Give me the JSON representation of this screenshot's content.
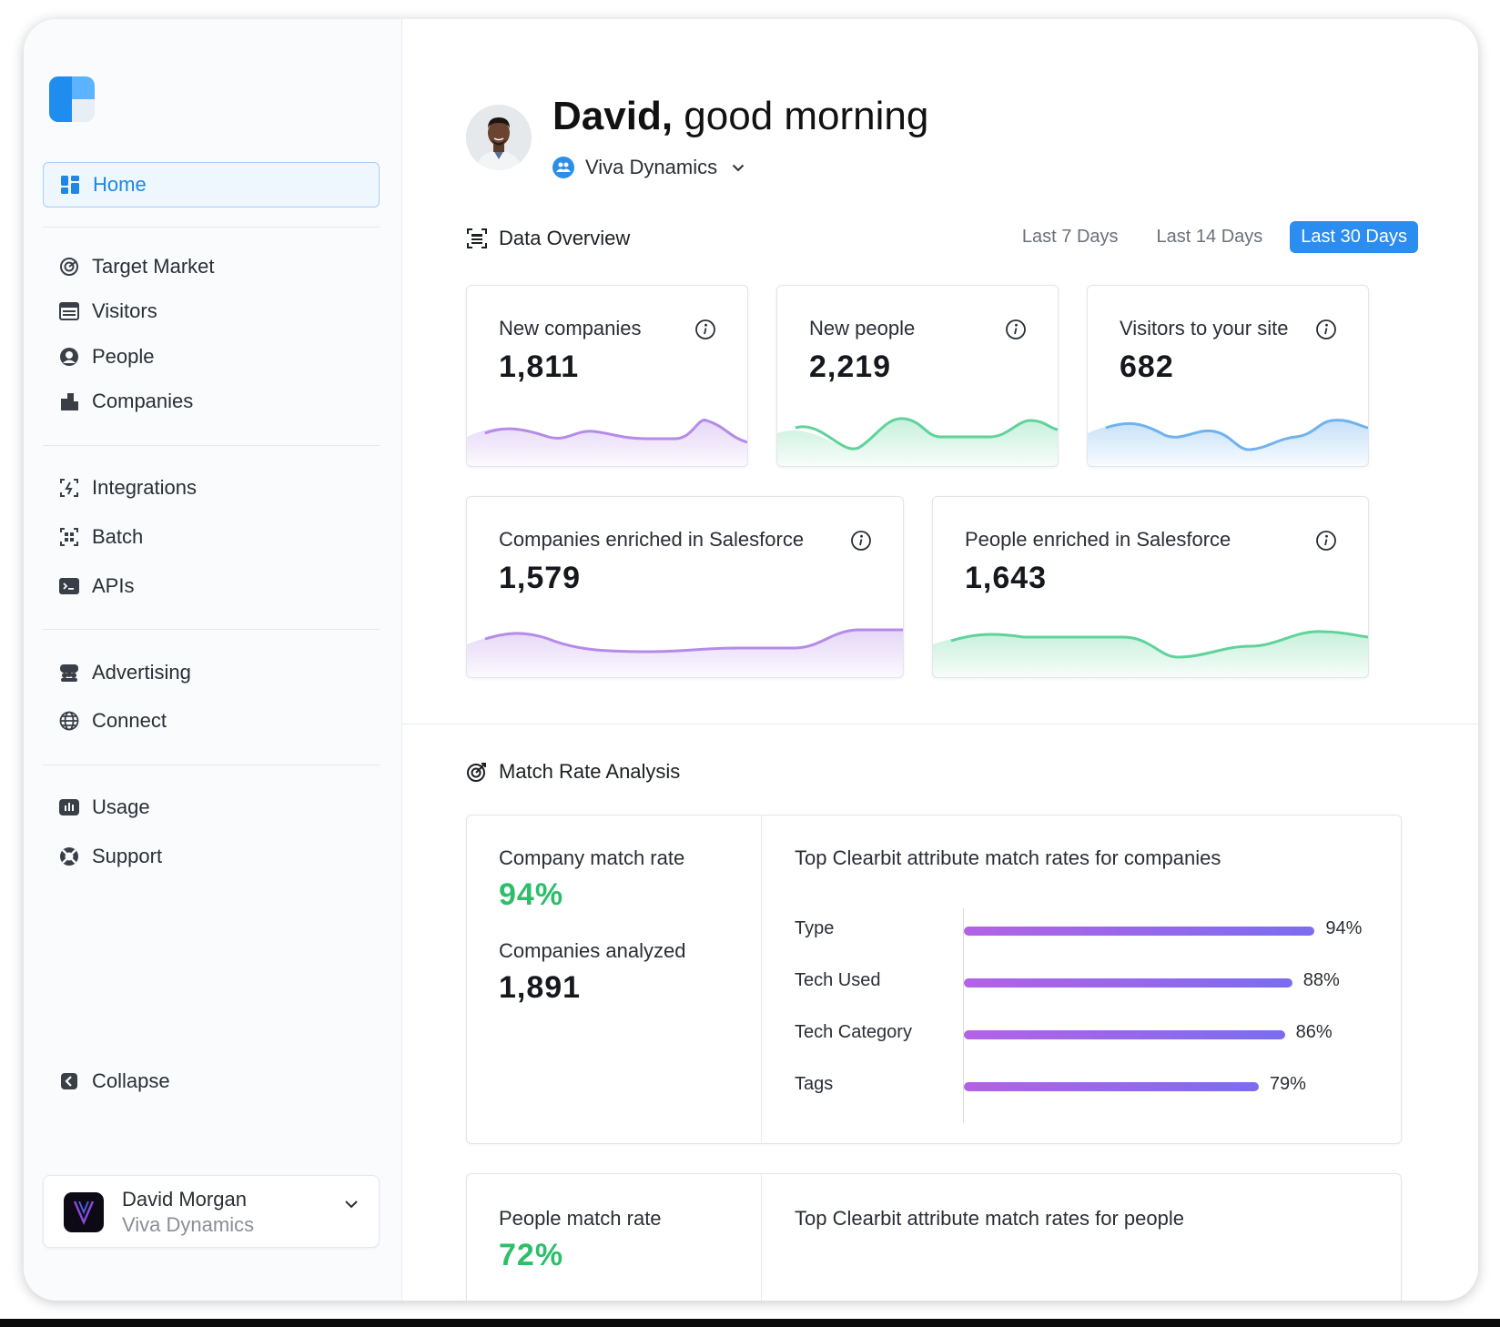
{
  "sidebar": {
    "items": [
      {
        "label": "Home",
        "icon": "dashboard-icon"
      },
      {
        "label": "Target Market",
        "icon": "radar-icon"
      },
      {
        "label": "Visitors",
        "icon": "browser-window-icon"
      },
      {
        "label": "People",
        "icon": "person-circle-icon"
      },
      {
        "label": "Companies",
        "icon": "buildings-icon"
      },
      {
        "label": "Integrations",
        "icon": "plug-bolt-icon"
      },
      {
        "label": "Batch",
        "icon": "grid-dots-icon"
      },
      {
        "label": "APIs",
        "icon": "terminal-icon"
      },
      {
        "label": "Advertising",
        "icon": "audience-icon"
      },
      {
        "label": "Connect",
        "icon": "globe-icon"
      },
      {
        "label": "Usage",
        "icon": "bar-chart-icon"
      },
      {
        "label": "Support",
        "icon": "lifebuoy-icon"
      }
    ],
    "collapse_label": "Collapse",
    "user": {
      "name": "David Morgan",
      "org": "Viva Dynamics"
    }
  },
  "header": {
    "name": "David,",
    "greeting": "good morning",
    "org": "Viva Dynamics"
  },
  "overview": {
    "title": "Data Overview",
    "ranges": [
      "Last 7 Days",
      "Last 14 Days",
      "Last 30 Days"
    ],
    "active_range": "Last 30 Days",
    "cards": [
      {
        "label": "New companies",
        "value": "1,811",
        "color": "#b58be8"
      },
      {
        "label": "New people",
        "value": "2,219",
        "color": "#5fd39a"
      },
      {
        "label": "Visitors to your site",
        "value": "682",
        "color": "#6fb2ee"
      },
      {
        "label": "Companies enriched in Salesforce",
        "value": "1,579",
        "color": "#b58be8"
      },
      {
        "label": "People enriched in Salesforce",
        "value": "1,643",
        "color": "#5fd39a"
      }
    ]
  },
  "match": {
    "title": "Match Rate Analysis",
    "company": {
      "rate_label": "Company match rate",
      "rate_value": "94%",
      "analyzed_label": "Companies analyzed",
      "analyzed_value": "1,891",
      "chart_title": "Top Clearbit attribute match rates for companies"
    },
    "people": {
      "rate_label": "People match rate",
      "rate_value": "72%",
      "chart_title": "Top Clearbit attribute match rates for people"
    },
    "accent": "#2cbf6a"
  },
  "chart_data": {
    "type": "bar",
    "orientation": "horizontal",
    "title": "Top Clearbit attribute match rates for companies",
    "categories": [
      "Type",
      "Tech Used",
      "Tech Category",
      "Tags"
    ],
    "values": [
      94,
      88,
      86,
      79
    ],
    "value_labels": [
      "94%",
      "88%",
      "86%",
      "79%"
    ],
    "xlim": [
      0,
      100
    ]
  }
}
